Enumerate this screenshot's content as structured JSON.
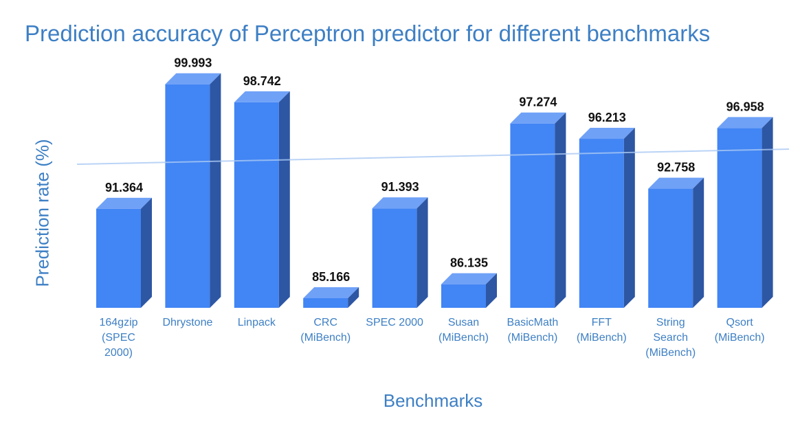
{
  "chart_data": {
    "type": "bar",
    "title": "Prediction accuracy of Perceptron predictor for different benchmarks",
    "xlabel": "Benchmarks",
    "ylabel": "Prediction rate (%)",
    "categories": [
      [
        "164gzip",
        "(SPEC",
        "2000)"
      ],
      [
        "Dhrystone"
      ],
      [
        "Linpack"
      ],
      [
        "CRC",
        "(MiBench)"
      ],
      [
        "SPEC 2000"
      ],
      [
        "Susan",
        "(MiBench)"
      ],
      [
        "BasicMath",
        "(MiBench)"
      ],
      [
        "FFT",
        "(MiBench)"
      ],
      [
        "String",
        "Search",
        "(MiBench)"
      ],
      [
        "Qsort",
        "(MiBench)"
      ]
    ],
    "values": [
      91.364,
      99.993,
      98.742,
      85.166,
      91.393,
      86.135,
      97.274,
      96.213,
      92.758,
      96.958
    ],
    "value_labels": [
      "91.364",
      "99.993",
      "98.742",
      "85.166",
      "91.393",
      "86.135",
      "97.274",
      "96.213",
      "92.758",
      "96.958"
    ],
    "ylim": [
      84.5,
      100.5
    ],
    "trendline": [
      94.45,
      95.5
    ],
    "grid": false,
    "legend": "none",
    "colors": {
      "bar_front": "#4285f4",
      "bar_top": "#6fa1f7",
      "bar_side": "#2d56a3",
      "trend": "#a9c9f4",
      "text_accent": "#3d7fc4"
    }
  }
}
